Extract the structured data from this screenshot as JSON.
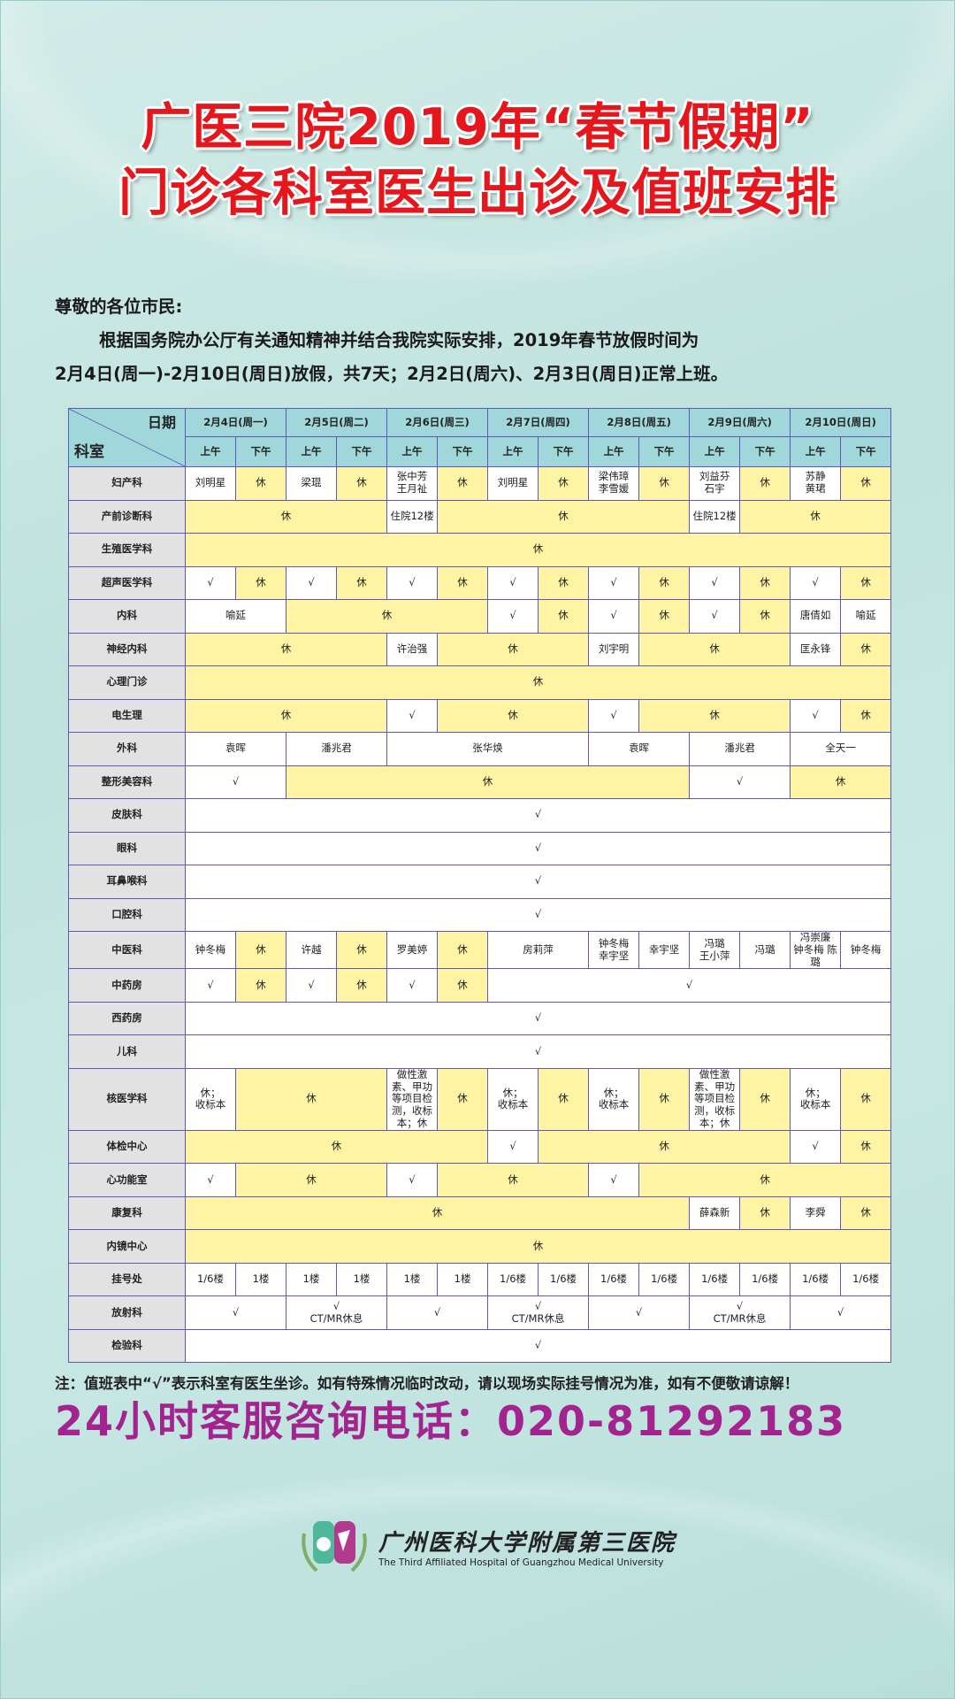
{
  "title": {
    "line1": "广医三院2019年“春节假期”",
    "line2": "门诊各科室医生出诊及值班安排"
  },
  "notice": {
    "greeting": "尊敬的各位市民:",
    "para1": "根据国务院办公厅有关通知精神并结合我院实际安排，2019年春节放假时间为",
    "para2": "2月4日(周一)-2月10日(周日)放假，共7天；2月2日(周六)、2月3日(周日)正常上班。"
  },
  "table": {
    "corner_date": "日期",
    "corner_dept": "科室",
    "days": [
      "2月4日(周一)",
      "2月5日(周二)",
      "2月6日(周三)",
      "2月7日(周四)",
      "2月8日(周五)",
      "2月9日(周六)",
      "2月10日(周日)"
    ],
    "am": "上午",
    "pm": "下午",
    "rows": [
      {
        "dept": "妇产科",
        "cells": [
          {
            "t": "刘明星"
          },
          {
            "t": "休",
            "r": 1
          },
          {
            "t": "梁琨"
          },
          {
            "t": "休",
            "r": 1
          },
          {
            "t": "张中芳\n王月祉"
          },
          {
            "t": "休",
            "r": 1
          },
          {
            "t": "刘明星"
          },
          {
            "t": "休",
            "r": 1
          },
          {
            "t": "梁伟璋\n李雪媛"
          },
          {
            "t": "休",
            "r": 1
          },
          {
            "t": "刘益芬\n石宇"
          },
          {
            "t": "休",
            "r": 1
          },
          {
            "t": "苏静\n黄珺"
          },
          {
            "t": "休",
            "r": 1
          }
        ]
      },
      {
        "dept": "产前诊断科",
        "cells": [
          {
            "t": "休",
            "s": 4,
            "r": 1
          },
          {
            "t": "住院12楼"
          },
          {
            "t": "休",
            "s": 5,
            "r": 1
          },
          {
            "t": "住院12楼"
          },
          {
            "t": "休",
            "s": 3,
            "r": 1
          }
        ]
      },
      {
        "dept": "生殖医学科",
        "cells": [
          {
            "t": "休",
            "s": 14,
            "r": 1
          }
        ]
      },
      {
        "dept": "超声医学科",
        "cells": [
          {
            "t": "√"
          },
          {
            "t": "休",
            "r": 1
          },
          {
            "t": "√"
          },
          {
            "t": "休",
            "r": 1
          },
          {
            "t": "√"
          },
          {
            "t": "休",
            "r": 1
          },
          {
            "t": "√"
          },
          {
            "t": "休",
            "r": 1
          },
          {
            "t": "√"
          },
          {
            "t": "休",
            "r": 1
          },
          {
            "t": "√"
          },
          {
            "t": "休",
            "r": 1
          },
          {
            "t": "√"
          },
          {
            "t": "休",
            "r": 1
          }
        ]
      },
      {
        "dept": "内科",
        "cells": [
          {
            "t": "喻延",
            "s": 2
          },
          {
            "t": "休",
            "s": 4,
            "r": 1
          },
          {
            "t": "√"
          },
          {
            "t": "休",
            "r": 1
          },
          {
            "t": "√"
          },
          {
            "t": "休",
            "r": 1
          },
          {
            "t": "√"
          },
          {
            "t": "休",
            "r": 1
          },
          {
            "t": "唐倩如"
          },
          {
            "t": "喻延"
          }
        ]
      },
      {
        "dept": "神经内科",
        "cells": [
          {
            "t": "休",
            "s": 4,
            "r": 1
          },
          {
            "t": "许治强"
          },
          {
            "t": "休",
            "s": 3,
            "r": 1
          },
          {
            "t": "刘宇明"
          },
          {
            "t": "休",
            "s": 3,
            "r": 1
          },
          {
            "t": "匡永锋"
          },
          {
            "t": "休",
            "r": 1
          }
        ]
      },
      {
        "dept": "心理门诊",
        "cells": [
          {
            "t": "休",
            "s": 14,
            "r": 1
          }
        ]
      },
      {
        "dept": "电生理",
        "cells": [
          {
            "t": "休",
            "s": 4,
            "r": 1
          },
          {
            "t": "√"
          },
          {
            "t": "休",
            "s": 3,
            "r": 1
          },
          {
            "t": "√"
          },
          {
            "t": "休",
            "s": 3,
            "r": 1
          },
          {
            "t": "√"
          },
          {
            "t": "休",
            "r": 1
          }
        ]
      },
      {
        "dept": "外科",
        "cells": [
          {
            "t": "袁晖",
            "s": 2
          },
          {
            "t": "潘兆君",
            "s": 2
          },
          {
            "t": "张华焕",
            "s": 4
          },
          {
            "t": "袁晖",
            "s": 2
          },
          {
            "t": "潘兆君",
            "s": 2
          },
          {
            "t": "全天一",
            "s": 2
          }
        ]
      },
      {
        "dept": "整形美容科",
        "cells": [
          {
            "t": "√",
            "s": 2
          },
          {
            "t": "休",
            "s": 8,
            "r": 1
          },
          {
            "t": "√",
            "s": 2
          },
          {
            "t": "休",
            "s": 2,
            "r": 1
          }
        ]
      },
      {
        "dept": "皮肤科",
        "cells": [
          {
            "t": "√",
            "s": 14
          }
        ]
      },
      {
        "dept": "眼科",
        "cells": [
          {
            "t": "√",
            "s": 14
          }
        ]
      },
      {
        "dept": "耳鼻喉科",
        "cells": [
          {
            "t": "√",
            "s": 14
          }
        ]
      },
      {
        "dept": "口腔科",
        "cells": [
          {
            "t": "√",
            "s": 14
          }
        ]
      },
      {
        "dept": "中医科",
        "cells": [
          {
            "t": "钟冬梅"
          },
          {
            "t": "休",
            "r": 1
          },
          {
            "t": "许越"
          },
          {
            "t": "休",
            "r": 1
          },
          {
            "t": "罗美婷"
          },
          {
            "t": "休",
            "r": 1
          },
          {
            "t": "房莉萍",
            "s": 2
          },
          {
            "t": "钟冬梅\n幸宇坚"
          },
          {
            "t": "幸宇坚"
          },
          {
            "t": "冯璐\n王小萍"
          },
          {
            "t": "冯璐"
          },
          {
            "t": "冯崇廉\n钟冬梅 陈璐",
            "sm": 1
          },
          {
            "t": "钟冬梅"
          }
        ]
      },
      {
        "dept": "中药房",
        "cells": [
          {
            "t": "√"
          },
          {
            "t": "休",
            "r": 1
          },
          {
            "t": "√"
          },
          {
            "t": "休",
            "r": 1
          },
          {
            "t": "√"
          },
          {
            "t": "休",
            "r": 1
          },
          {
            "t": "√",
            "s": 8
          }
        ]
      },
      {
        "dept": "西药房",
        "cells": [
          {
            "t": "√",
            "s": 14
          }
        ]
      },
      {
        "dept": "儿科",
        "cells": [
          {
            "t": "√",
            "s": 14
          }
        ]
      },
      {
        "dept": "核医学科",
        "cells": [
          {
            "t": "休；\n收标本"
          },
          {
            "t": "休",
            "s": 3,
            "r": 1
          },
          {
            "t": "做性激素、甲功等项目检测，收标本；休",
            "sm": 1
          },
          {
            "t": "休",
            "r": 1
          },
          {
            "t": "休；\n收标本"
          },
          {
            "t": "休",
            "r": 1
          },
          {
            "t": "休；\n收标本"
          },
          {
            "t": "休",
            "r": 1
          },
          {
            "t": "做性激素、甲功等项目检测，收标本；休",
            "sm": 1
          },
          {
            "t": "休",
            "r": 1
          },
          {
            "t": "休；\n收标本"
          },
          {
            "t": "休",
            "r": 1
          }
        ]
      },
      {
        "dept": "体检中心",
        "cells": [
          {
            "t": "休",
            "s": 6,
            "r": 1
          },
          {
            "t": "√"
          },
          {
            "t": "休",
            "s": 5,
            "r": 1
          },
          {
            "t": "√"
          },
          {
            "t": "休",
            "r": 1
          }
        ]
      },
      {
        "dept": "心功能室",
        "cells": [
          {
            "t": "√"
          },
          {
            "t": "休",
            "s": 3,
            "r": 1
          },
          {
            "t": "√"
          },
          {
            "t": "休",
            "s": 3,
            "r": 1
          },
          {
            "t": "√"
          },
          {
            "t": "休",
            "s": 5,
            "r": 1
          }
        ]
      },
      {
        "dept": "康复科",
        "cells": [
          {
            "t": "休",
            "s": 10,
            "r": 1
          },
          {
            "t": "薛森新"
          },
          {
            "t": "休",
            "r": 1
          },
          {
            "t": "李舜"
          },
          {
            "t": "休",
            "r": 1
          }
        ]
      },
      {
        "dept": "内镜中心",
        "cells": [
          {
            "t": "休",
            "s": 14,
            "r": 1
          }
        ]
      },
      {
        "dept": "挂号处",
        "cells": [
          {
            "t": "1/6楼"
          },
          {
            "t": "1楼"
          },
          {
            "t": "1楼"
          },
          {
            "t": "1楼"
          },
          {
            "t": "1楼"
          },
          {
            "t": "1楼"
          },
          {
            "t": "1/6楼"
          },
          {
            "t": "1/6楼"
          },
          {
            "t": "1/6楼"
          },
          {
            "t": "1/6楼"
          },
          {
            "t": "1/6楼"
          },
          {
            "t": "1/6楼"
          },
          {
            "t": "1/6楼"
          },
          {
            "t": "1/6楼"
          }
        ]
      },
      {
        "dept": "放射科",
        "cells": [
          {
            "t": "√",
            "s": 2
          },
          {
            "t": "√\nCT/MR休息",
            "s": 2
          },
          {
            "t": "√",
            "s": 2
          },
          {
            "t": "√\nCT/MR休息",
            "s": 2
          },
          {
            "t": "√",
            "s": 2
          },
          {
            "t": "√\nCT/MR休息",
            "s": 2
          },
          {
            "t": "√",
            "s": 2
          }
        ]
      },
      {
        "dept": "检验科",
        "cells": [
          {
            "t": "√",
            "s": 14
          }
        ]
      }
    ]
  },
  "footer": {
    "note": "注：值班表中“√”表示科室有医生坐诊。如有特殊情况临时改动，请以现场实际挂号情况为准，如有不便敬请谅解！",
    "phone": "24小时客服咨询电话：020-81292183",
    "logo_cn": "广州医科大学附属第三医院",
    "logo_en": "The Third Affiliated Hospital of Guangzhou Medical University"
  },
  "colors": {
    "title": "#e5161c",
    "phone": "#a3238f",
    "rest_cell": "#fff3a4",
    "header_cell": "#9fd7db",
    "border": "#5e58b8"
  }
}
